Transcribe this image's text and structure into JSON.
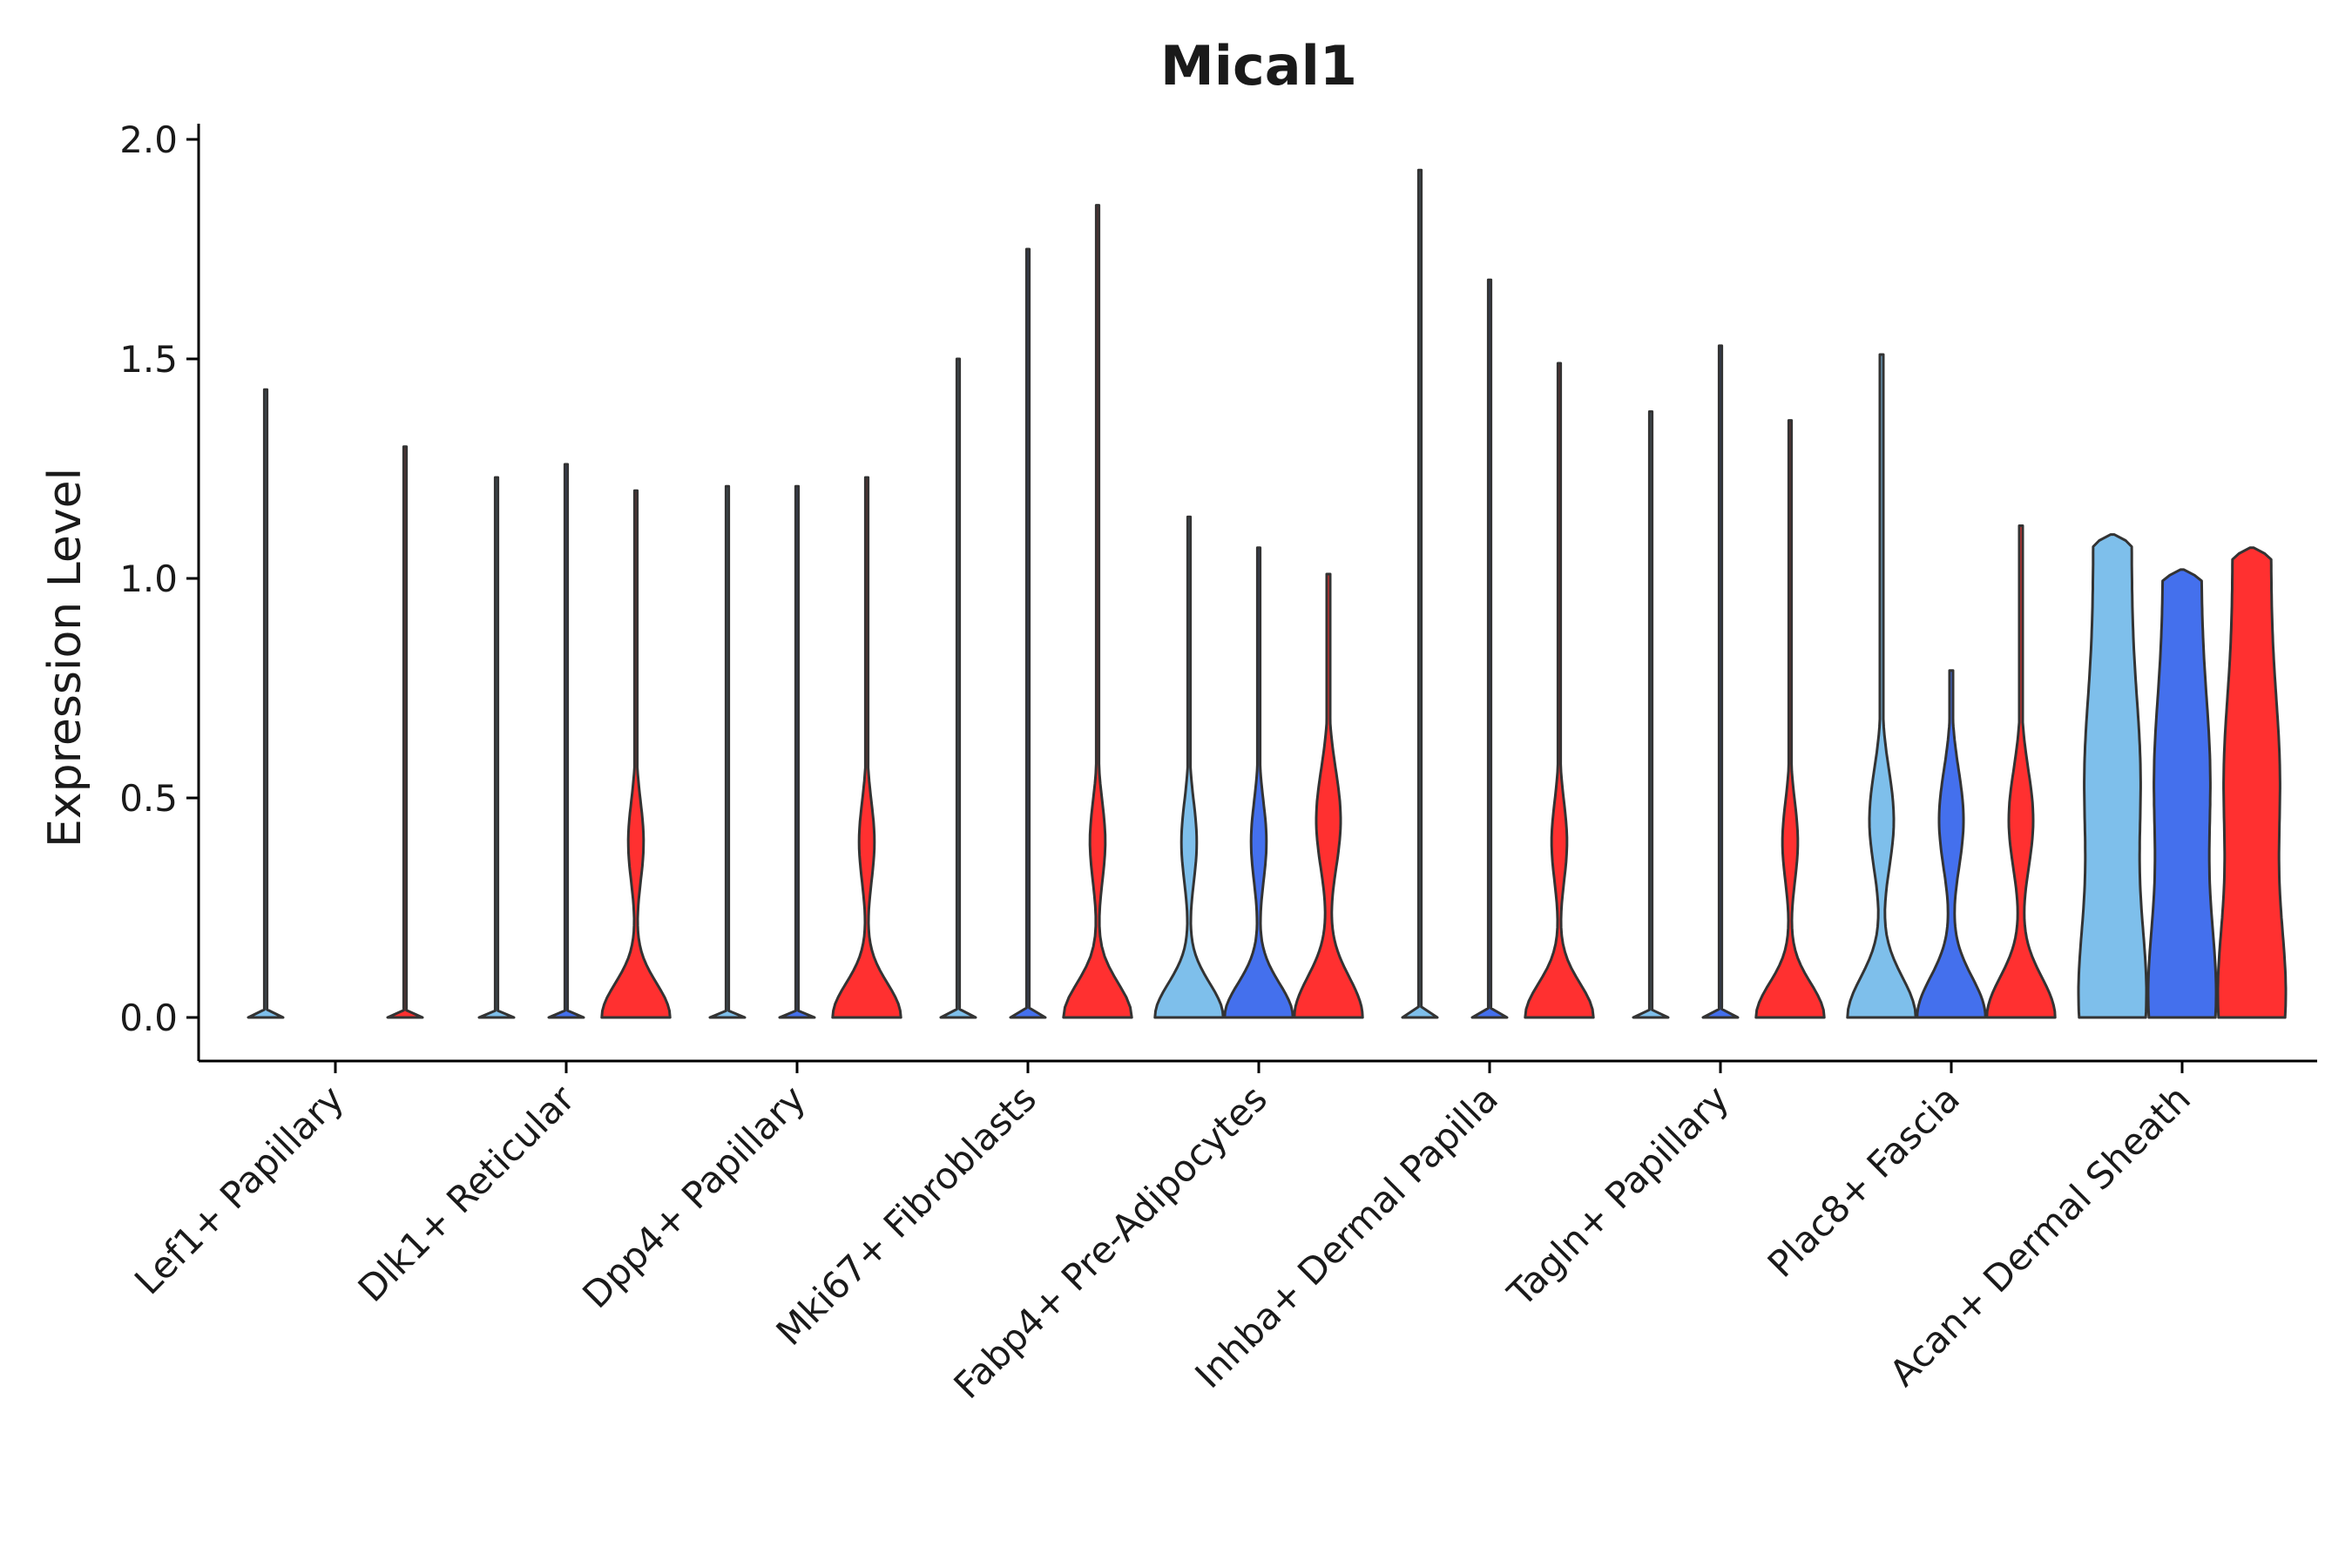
{
  "chart_data": {
    "type": "violin",
    "title": "Mical1",
    "xlabel": "",
    "ylabel": "Expression Level",
    "ylim": [
      -0.1,
      2.03
    ],
    "yticks": [
      0.0,
      0.5,
      1.0,
      1.5,
      2.0
    ],
    "ytick_labels": [
      "0.0",
      "0.5",
      "1.0",
      "1.5",
      "2.0"
    ],
    "legend": "none",
    "grid": false,
    "series_colors": [
      "#7ebfeb",
      "#4470ed",
      "#ff3030"
    ],
    "outline_color": "#333333",
    "categories": [
      {
        "label": "Lef1+ Papillary",
        "violins": [
          {
            "series": 0,
            "max": 1.43,
            "profile": "flat"
          },
          {
            "series": 2,
            "max": 1.3,
            "profile": "flat"
          }
        ]
      },
      {
        "label": "Dlk1+ Reticular",
        "violins": [
          {
            "series": 0,
            "max": 1.23,
            "profile": "flat"
          },
          {
            "series": 1,
            "max": 1.26,
            "profile": "flat"
          },
          {
            "series": 2,
            "max": 1.2,
            "profile": "low"
          }
        ]
      },
      {
        "label": "Dpp4+ Papillary",
        "violins": [
          {
            "series": 0,
            "max": 1.21,
            "profile": "flat"
          },
          {
            "series": 1,
            "max": 1.21,
            "profile": "flat"
          },
          {
            "series": 2,
            "max": 1.23,
            "profile": "low"
          }
        ]
      },
      {
        "label": "Mki67+ Fibroblasts",
        "violins": [
          {
            "series": 0,
            "max": 1.5,
            "profile": "flat"
          },
          {
            "series": 1,
            "max": 1.75,
            "profile": "flat"
          },
          {
            "series": 2,
            "max": 1.85,
            "profile": "low"
          }
        ]
      },
      {
        "label": "Fabp4+ Pre-Adipocytes",
        "violins": [
          {
            "series": 0,
            "max": 1.14,
            "profile": "low"
          },
          {
            "series": 1,
            "max": 1.07,
            "profile": "low"
          },
          {
            "series": 2,
            "max": 1.01,
            "profile": "medium"
          }
        ]
      },
      {
        "label": "Inhba+ Dermal Papilla",
        "violins": [
          {
            "series": 0,
            "max": 1.93,
            "profile": "flat"
          },
          {
            "series": 1,
            "max": 1.68,
            "profile": "flat"
          },
          {
            "series": 2,
            "max": 1.49,
            "profile": "low"
          }
        ]
      },
      {
        "label": "Tagln+ Papillary",
        "violins": [
          {
            "series": 0,
            "max": 1.38,
            "profile": "flat"
          },
          {
            "series": 1,
            "max": 1.53,
            "profile": "flat"
          },
          {
            "series": 2,
            "max": 1.36,
            "profile": "low"
          }
        ]
      },
      {
        "label": "Plac8+ Fascia",
        "violins": [
          {
            "series": 0,
            "max": 1.51,
            "profile": "medium"
          },
          {
            "series": 1,
            "max": 0.79,
            "profile": "medium"
          },
          {
            "series": 2,
            "max": 1.12,
            "profile": "medium"
          }
        ]
      },
      {
        "label": "Acan+ Dermal Sheath",
        "violins": [
          {
            "series": 0,
            "max": 1.1,
            "profile": "high"
          },
          {
            "series": 1,
            "max": 1.02,
            "profile": "high"
          },
          {
            "series": 2,
            "max": 1.07,
            "profile": "high"
          }
        ]
      }
    ]
  }
}
